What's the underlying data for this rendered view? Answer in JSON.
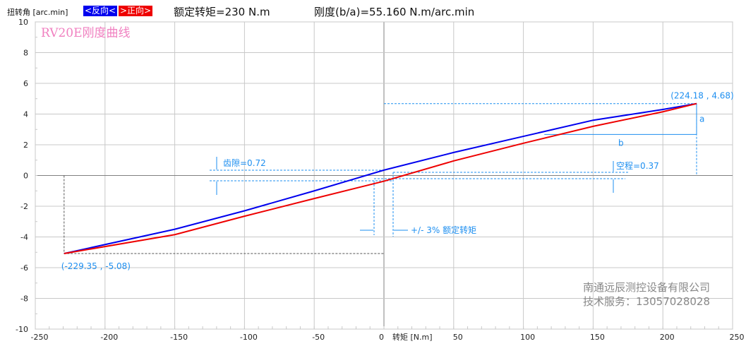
{
  "header": {
    "y_axis_title": "扭转角 [arc.min]",
    "legend_reverse": "<反向<",
    "legend_forward": ">正向>",
    "rated_torque": "额定转矩=230 N.m",
    "stiffness": "刚度(b/a)=55.160 N.m/arc.min"
  },
  "colors": {
    "reverse": "#0000ee",
    "forward": "#ee0000",
    "annot": "#1e8ff0",
    "grid": "#c8c8c8",
    "title": "#f080c0"
  },
  "chart_data": {
    "type": "line",
    "title": "RV20E刚度曲线",
    "xlabel": "转矩 [N.m]",
    "ylabel": "扭转角 [arc.min]",
    "xlim": [
      -250,
      250
    ],
    "ylim": [
      -10,
      10
    ],
    "xticks": [
      "-250",
      "-200",
      "-150",
      "-100",
      "-50",
      "0",
      "50",
      "100",
      "150",
      "200",
      "250"
    ],
    "yticks": [
      "10",
      "8",
      "6",
      "4",
      "2",
      "0",
      "-2",
      "-4",
      "-6",
      "-8",
      "-10"
    ],
    "grid": true,
    "series": [
      {
        "name": "反向",
        "x": [
          -229.35,
          -150,
          -100,
          -50,
          0,
          50,
          100,
          150,
          200,
          224.18
        ],
        "y": [
          -5.08,
          -3.5,
          -2.3,
          -1.0,
          0.35,
          1.5,
          2.55,
          3.6,
          4.3,
          4.68
        ]
      },
      {
        "name": "正向",
        "x": [
          -229.35,
          -150,
          -100,
          -50,
          0,
          50,
          100,
          150,
          200,
          224.18
        ],
        "y": [
          -5.08,
          -3.85,
          -2.65,
          -1.5,
          -0.37,
          0.95,
          2.1,
          3.2,
          4.15,
          4.68
        ]
      }
    ],
    "annotations": {
      "start_point": "(-229.35 , -5.08)",
      "end_point": "(224.18 , 4.68)",
      "a": "a",
      "b": "b",
      "backlash": "齿隙=0.72",
      "lost_motion": "空程=0.37",
      "torque_band": "+/- 3% 额定转矩"
    }
  },
  "watermark": {
    "company": "南通远辰测控设备有限公司",
    "service": "技术服务：13057028028"
  }
}
